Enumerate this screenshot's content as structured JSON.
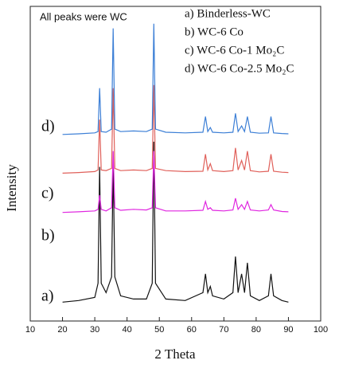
{
  "chart_data": {
    "type": "line",
    "annotation": "All peaks were WC",
    "xlabel": "2 Theta",
    "ylabel": "Intensity",
    "curve_labels": [
      "a)",
      "b)",
      "c)",
      "d)"
    ],
    "xlim": [
      10,
      100
    ],
    "xticks": [
      10,
      20,
      30,
      40,
      50,
      60,
      70,
      80,
      90,
      100
    ],
    "ylim": [
      0,
      100
    ],
    "x": [
      20,
      25,
      30,
      31,
      31.5,
      32,
      33.5,
      35.2,
      35.7,
      36.2,
      38,
      42,
      46,
      47.8,
      48.3,
      48.8,
      52,
      58,
      63.5,
      64.3,
      65,
      65.8,
      66.5,
      70,
      72.8,
      73.6,
      74.4,
      75.5,
      76.4,
      77.3,
      78.2,
      81,
      83.8,
      84.6,
      85.4,
      88,
      90
    ],
    "series": [
      {
        "name": "a) Binderless-WC",
        "color": "#111111",
        "values": [
          6,
          6.5,
          7.5,
          12,
          49,
          12,
          9,
          14,
          50,
          14,
          8,
          7,
          7,
          12,
          57,
          12,
          7,
          6.5,
          9,
          15,
          9,
          11,
          8,
          7,
          9,
          20.5,
          9,
          15,
          9,
          18.5,
          8,
          6.5,
          8,
          15,
          8,
          6.5,
          6
        ]
      },
      {
        "name": "b) WC-6 Co",
        "color": "#e026e0",
        "values": [
          34.5,
          34.7,
          35,
          35.5,
          40,
          35.5,
          35,
          36,
          54,
          36,
          35.2,
          35.5,
          35.3,
          36,
          54,
          36,
          35,
          35,
          35.2,
          38,
          35.5,
          36,
          35.2,
          35,
          35.3,
          39,
          35.5,
          37,
          35.5,
          38,
          35.3,
          35,
          35.3,
          37,
          35.3,
          34.8,
          34.7
        ]
      },
      {
        "name": "c) WC-6 Co-1 Mo₂C",
        "color": "#e0605a",
        "values": [
          47,
          47.2,
          47.5,
          48,
          64,
          48,
          47.8,
          48.5,
          74,
          48.5,
          47.8,
          48,
          47.8,
          48.5,
          75,
          48.5,
          47.8,
          47.5,
          47.6,
          53,
          48,
          50,
          47.8,
          47.5,
          47.8,
          55,
          48,
          51,
          48,
          54,
          47.8,
          47.4,
          47.6,
          53,
          47.6,
          47.3,
          47.2
        ]
      },
      {
        "name": "d) WC-6 Co-2.5 Mo₂C",
        "color": "#3c7fd6",
        "values": [
          59.3,
          59.5,
          59.8,
          60.2,
          74,
          60.2,
          60,
          61,
          93,
          61,
          60.2,
          60.4,
          60.2,
          61,
          94.5,
          61,
          60,
          59.8,
          60,
          65,
          60.2,
          61.5,
          60,
          59.8,
          60,
          66,
          60.2,
          62,
          60.2,
          65,
          60,
          59.7,
          59.8,
          65,
          59.8,
          59.6,
          59.5
        ]
      }
    ]
  }
}
